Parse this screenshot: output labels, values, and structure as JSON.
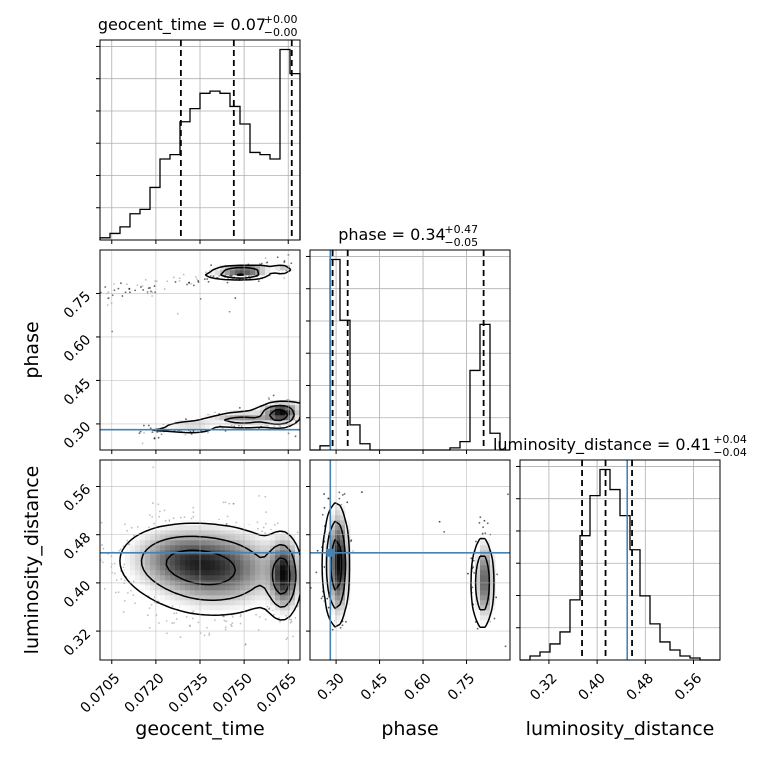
{
  "chart_data": {
    "type": "corner",
    "grid": true,
    "truth_color": "#4682b4",
    "parameters": [
      {
        "name": "geocent_time",
        "label": "geocent_time",
        "title": "geocent_time = 0.07",
        "title_plus": "+0.00",
        "title_minus": "−0.00",
        "range": [
          0.0701,
          0.0769
        ],
        "ticks": [
          0.0705,
          0.072,
          0.0735,
          0.075,
          0.0765
        ],
        "tick_labels": [
          "0.0705",
          "0.0720",
          "0.0735",
          "0.0750",
          "0.0765"
        ],
        "quantiles": [
          0.07285,
          0.07465,
          0.07662
        ],
        "truth": null,
        "hist": {
          "bin_edges": [
            0.0701,
            0.07044,
            0.07078,
            0.07112,
            0.07146,
            0.0718,
            0.07214,
            0.07248,
            0.07282,
            0.07316,
            0.0735,
            0.07384,
            0.07418,
            0.07452,
            0.07486,
            0.0752,
            0.07554,
            0.07588,
            0.07622,
            0.07656,
            0.0769
          ],
          "counts": [
            0.01,
            0.03,
            0.06,
            0.12,
            0.14,
            0.24,
            0.37,
            0.39,
            0.54,
            0.6,
            0.67,
            0.68,
            0.67,
            0.61,
            0.53,
            0.4,
            0.39,
            0.37,
            0.87,
            0.76
          ]
        }
      },
      {
        "name": "phase",
        "label": "phase",
        "title": "phase = 0.34",
        "title_plus": "+0.47",
        "title_minus": "−0.05",
        "range": [
          0.21,
          0.9
        ],
        "ticks": [
          0.3,
          0.45,
          0.6,
          0.75
        ],
        "tick_labels": [
          "0.30",
          "0.45",
          "0.60",
          "0.75"
        ],
        "quantiles": [
          0.288,
          0.34,
          0.809
        ],
        "truth": 0.28,
        "hist": {
          "bin_edges": [
            0.21,
            0.2445,
            0.279,
            0.3135,
            0.348,
            0.3825,
            0.417,
            0.4515,
            0.486,
            0.5205,
            0.555,
            0.5895,
            0.624,
            0.6585,
            0.693,
            0.7275,
            0.762,
            0.7965,
            0.831,
            0.8655,
            0.9
          ],
          "counts": [
            0,
            0.02,
            0.91,
            0.62,
            0.12,
            0.03,
            0,
            0,
            0,
            0,
            0,
            0,
            0,
            0,
            0.01,
            0.04,
            0.38,
            0.6,
            0.08,
            0
          ]
        }
      },
      {
        "name": "luminosity_distance",
        "label": "luminosity_distance",
        "title": "luminosity_distance = 0.41",
        "title_plus": "+0.04",
        "title_minus": "−0.04",
        "range": [
          0.272,
          0.604
        ],
        "ticks": [
          0.32,
          0.4,
          0.48,
          0.56
        ],
        "tick_labels": [
          "0.32",
          "0.40",
          "0.48",
          "0.56"
        ],
        "quantiles": [
          0.375,
          0.414,
          0.458
        ],
        "truth": 0.45,
        "hist": {
          "bin_edges": [
            0.272,
            0.2886,
            0.3052,
            0.3218,
            0.3384,
            0.355,
            0.3716,
            0.3882,
            0.4048,
            0.4214,
            0.438,
            0.4546,
            0.4712,
            0.4878,
            0.5044,
            0.521,
            0.5376,
            0.5542,
            0.5708,
            0.5874,
            0.604
          ],
          "counts": [
            0,
            0.02,
            0.04,
            0.08,
            0.14,
            0.3,
            0.62,
            0.82,
            0.95,
            0.85,
            0.72,
            0.55,
            0.32,
            0.18,
            0.09,
            0.05,
            0.02,
            0.01,
            0,
            0
          ]
        }
      }
    ],
    "pairs": [
      {
        "x": "geocent_time",
        "y": "phase",
        "blobs": [
          {
            "cx": 0.0749,
            "cy": 0.82,
            "sx": 0.0005,
            "sy": 0.012,
            "w": 0.8
          },
          {
            "cx": 0.0763,
            "cy": 0.83,
            "sx": 0.0002,
            "sy": 0.008,
            "w": 0.3
          },
          {
            "cx": 0.0762,
            "cy": 0.33,
            "sx": 0.00035,
            "sy": 0.02,
            "w": 1.0
          },
          {
            "cx": 0.075,
            "cy": 0.31,
            "sx": 0.0006,
            "sy": 0.012,
            "w": 0.5
          },
          {
            "cx": 0.0733,
            "cy": 0.285,
            "sx": 0.0005,
            "sy": 0.01,
            "w": 0.25
          }
        ],
        "tracks": [
          {
            "x0": 0.0701,
            "y0": 0.74,
            "x1": 0.0765,
            "y1": 0.86,
            "w": 0.4
          },
          {
            "x0": 0.0716,
            "y0": 0.27,
            "x1": 0.0769,
            "y1": 0.37,
            "w": 0.5
          }
        ],
        "contour_levels": [
          0.12,
          0.35,
          0.7
        ]
      },
      {
        "x": "geocent_time",
        "y": "luminosity_distance",
        "blobs": [
          {
            "cx": 0.074,
            "cy": 0.42,
            "sx": 0.0013,
            "sy": 0.038,
            "w": 1.0
          },
          {
            "cx": 0.0763,
            "cy": 0.41,
            "sx": 0.0003,
            "sy": 0.035,
            "w": 1.1
          },
          {
            "cx": 0.0725,
            "cy": 0.44,
            "sx": 0.001,
            "sy": 0.03,
            "w": 0.5
          }
        ],
        "tracks": [],
        "contour_levels": [
          0.12,
          0.35,
          0.7
        ]
      },
      {
        "x": "phase",
        "y": "luminosity_distance",
        "blobs": [
          {
            "cx": 0.3,
            "cy": 0.43,
            "sx": 0.022,
            "sy": 0.05,
            "w": 1.0
          },
          {
            "cx": 0.805,
            "cy": 0.4,
            "sx": 0.02,
            "sy": 0.04,
            "w": 0.7
          }
        ],
        "tracks": [],
        "contour_levels": [
          0.12,
          0.35,
          0.7
        ]
      }
    ]
  }
}
